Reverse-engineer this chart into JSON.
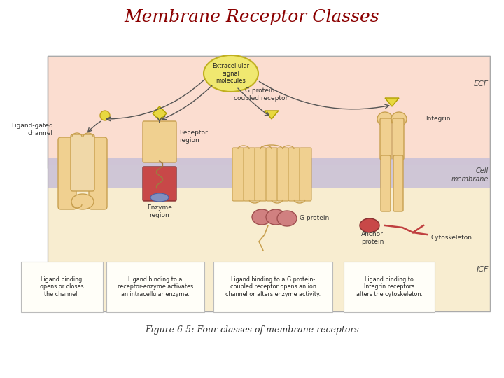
{
  "title": "Membrane Receptor Classes",
  "title_color": "#8B0000",
  "title_fontsize": 18,
  "caption": "Figure 6-5: Four classes of membrane receptors",
  "caption_fontsize": 9,
  "bg_color": "#FFFFFF",
  "ecf_label": "ECF",
  "icf_label": "ICF",
  "cell_membrane_label": "Cell\nmembrane",
  "signal_label": "Extracellular\nsignal\nmolecules",
  "enzyme_label": "Enzyme\nregion",
  "receptor_region_label": "Receptor\nregion",
  "g_protein_label": "G protein",
  "anchor_label": "Anchor\nprotein",
  "cyto_label": "Cytoskeleton",
  "r1_label": "Ligand-gated\nchannel",
  "r3_label": "G protein-\ncoupled receptor",
  "r4_label": "Integrin",
  "desc1": "Ligand binding\nopens or closes\nthe channel.",
  "desc2": "Ligand binding to a\nreceptor-enzyme activates\nan intracellular enzyme.",
  "desc3": "Ligand binding to a G protein-\ncoupled receptor opens an ion\nchannel or alters enzyme activity.",
  "desc4": "Ligand binding to\nIntegrin receptors\nalters the cytoskeleton.",
  "tan_light": "#F0D090",
  "tan_mid": "#E0B870",
  "tan_dark": "#C8A050",
  "red_enzyme": "#C84848",
  "pink_gp": "#D08080",
  "yellow_lig": "#E8D840",
  "panel_ecf": "#FBDDD0",
  "panel_icf": "#F8EDD0",
  "membrane_col": "#C8C0D8",
  "blue_site": "#8090C0"
}
